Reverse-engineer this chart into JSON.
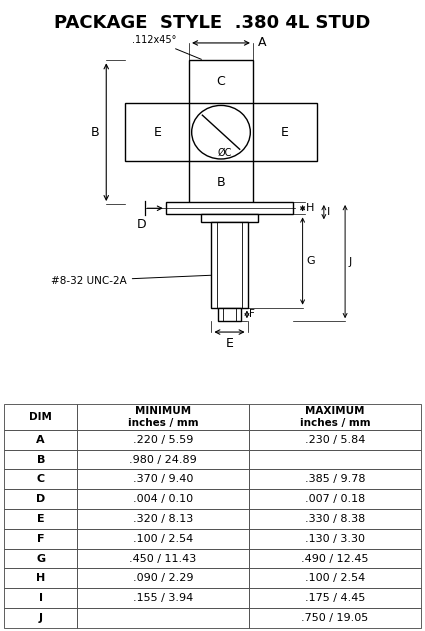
{
  "title": "PACKAGE  STYLE  .380 4L STUD",
  "title_fontsize": 13,
  "bg_color": "#ffffff",
  "table": {
    "headers": [
      "DIM",
      "MINIMUM\ninches / mm",
      "MAXIMUM\ninches / mm"
    ],
    "rows": [
      [
        "A",
        ".220 / 5.59",
        ".230 / 5.84"
      ],
      [
        "B",
        ".980 / 24.89",
        ""
      ],
      [
        "C",
        ".370 / 9.40",
        ".385 / 9.78"
      ],
      [
        "D",
        ".004 / 0.10",
        ".007 / 0.18"
      ],
      [
        "E",
        ".320 / 8.13",
        ".330 / 8.38"
      ],
      [
        "F",
        ".100 / 2.54",
        ".130 / 3.30"
      ],
      [
        "G",
        ".450 / 11.43",
        ".490 / 12.45"
      ],
      [
        "H",
        ".090 / 2.29",
        ".100 / 2.54"
      ],
      [
        "I",
        ".155 / 3.94",
        ".175 / 4.45"
      ],
      [
        "J",
        "",
        ".750 / 19.05"
      ]
    ]
  }
}
